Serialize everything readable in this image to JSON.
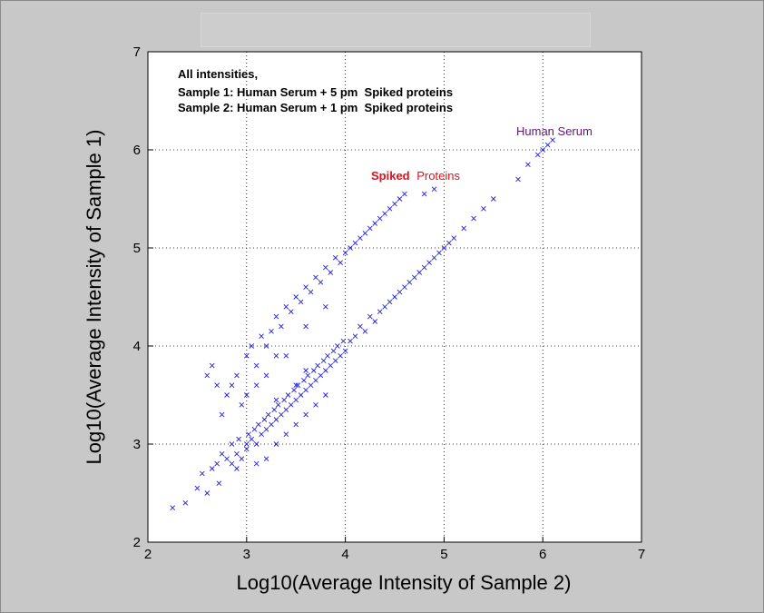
{
  "chart_data": {
    "type": "scatter",
    "xlabel": "Log10(Average Intensity of Sample 2)",
    "ylabel": "Log10(Average Intensity of Sample 1)",
    "xlim": [
      2,
      7
    ],
    "ylim": [
      2,
      7
    ],
    "xticks": [
      "2",
      "3",
      "4",
      "5",
      "6",
      "7"
    ],
    "yticks": [
      "2",
      "3",
      "4",
      "5",
      "6",
      "7"
    ],
    "grid": true,
    "marker": "x",
    "marker_color": "#2020e0",
    "annotation_lines": [
      "All intensities,",
      "Sample 1: Human Serum + 5 pm  Spiked proteins",
      "Sample 2: Human Serum + 1 pm  Spiked proteins"
    ],
    "labels": {
      "human_serum": "Human Serum",
      "spiked_bold": "Spiked",
      "spiked_rest": "Proteins"
    },
    "colors": {
      "human_serum": "#5a1a6e",
      "spiked": "#e0101a"
    },
    "series": [
      {
        "group": "serum-cloud",
        "points": [
          [
            2.25,
            2.35
          ],
          [
            2.38,
            2.4
          ],
          [
            2.5,
            2.55
          ],
          [
            2.55,
            2.7
          ],
          [
            2.6,
            2.5
          ],
          [
            2.65,
            2.75
          ],
          [
            2.7,
            2.8
          ],
          [
            2.72,
            2.6
          ],
          [
            2.75,
            2.9
          ],
          [
            2.8,
            2.85
          ],
          [
            2.85,
            2.8
          ],
          [
            2.85,
            3.0
          ],
          [
            2.9,
            2.9
          ],
          [
            2.92,
            3.05
          ],
          [
            2.95,
            2.85
          ],
          [
            3.0,
            3.0
          ],
          [
            3.0,
            2.95
          ],
          [
            3.02,
            3.1
          ],
          [
            3.05,
            3.05
          ],
          [
            3.08,
            3.15
          ],
          [
            3.1,
            3.0
          ],
          [
            3.12,
            3.2
          ],
          [
            3.15,
            3.1
          ],
          [
            3.18,
            3.25
          ],
          [
            3.2,
            3.15
          ],
          [
            3.22,
            3.3
          ],
          [
            3.25,
            3.2
          ],
          [
            3.28,
            3.35
          ],
          [
            3.3,
            3.25
          ],
          [
            3.32,
            3.4
          ],
          [
            3.35,
            3.3
          ],
          [
            3.38,
            3.45
          ],
          [
            3.4,
            3.35
          ],
          [
            3.42,
            3.5
          ],
          [
            3.45,
            3.4
          ],
          [
            3.48,
            3.55
          ],
          [
            3.5,
            3.45
          ],
          [
            3.52,
            3.6
          ],
          [
            3.55,
            3.5
          ],
          [
            3.58,
            3.65
          ],
          [
            3.6,
            3.55
          ],
          [
            3.62,
            3.7
          ],
          [
            3.65,
            3.6
          ],
          [
            3.68,
            3.75
          ],
          [
            3.7,
            3.65
          ],
          [
            3.72,
            3.8
          ],
          [
            3.75,
            3.7
          ],
          [
            3.78,
            3.85
          ],
          [
            3.8,
            3.75
          ],
          [
            3.82,
            3.9
          ],
          [
            3.85,
            3.8
          ],
          [
            3.88,
            3.95
          ],
          [
            3.9,
            3.85
          ],
          [
            3.92,
            4.0
          ],
          [
            3.95,
            3.9
          ],
          [
            3.98,
            4.05
          ],
          [
            4.0,
            3.95
          ],
          [
            4.05,
            4.05
          ],
          [
            4.1,
            4.1
          ],
          [
            4.15,
            4.2
          ],
          [
            4.2,
            4.15
          ],
          [
            4.25,
            4.3
          ],
          [
            4.3,
            4.25
          ],
          [
            4.35,
            4.35
          ],
          [
            4.4,
            4.4
          ],
          [
            4.45,
            4.45
          ],
          [
            4.5,
            4.5
          ],
          [
            4.55,
            4.55
          ],
          [
            4.6,
            4.6
          ],
          [
            4.65,
            4.65
          ],
          [
            4.7,
            4.7
          ],
          [
            4.75,
            4.75
          ],
          [
            4.8,
            4.8
          ],
          [
            4.85,
            4.85
          ],
          [
            4.9,
            4.9
          ],
          [
            4.95,
            4.95
          ],
          [
            5.0,
            5.0
          ],
          [
            5.05,
            5.05
          ],
          [
            5.1,
            5.1
          ],
          [
            5.2,
            5.2
          ],
          [
            5.3,
            5.3
          ],
          [
            5.4,
            5.4
          ],
          [
            5.5,
            5.5
          ],
          [
            5.75,
            5.7
          ],
          [
            5.85,
            5.85
          ],
          [
            5.95,
            5.95
          ],
          [
            6.0,
            6.0
          ],
          [
            6.05,
            6.05
          ],
          [
            6.1,
            6.1
          ],
          [
            3.3,
            3.0
          ],
          [
            3.4,
            3.1
          ],
          [
            3.5,
            3.2
          ],
          [
            3.6,
            3.3
          ],
          [
            3.7,
            3.4
          ],
          [
            3.8,
            3.5
          ],
          [
            3.2,
            2.85
          ],
          [
            3.1,
            2.8
          ],
          [
            2.9,
            2.75
          ],
          [
            3.5,
            3.6
          ],
          [
            3.6,
            3.75
          ],
          [
            3.3,
            3.45
          ]
        ]
      },
      {
        "group": "spiked-band",
        "points": [
          [
            2.6,
            3.7
          ],
          [
            2.65,
            3.8
          ],
          [
            2.7,
            3.6
          ],
          [
            2.8,
            3.5
          ],
          [
            2.9,
            3.7
          ],
          [
            3.0,
            3.9
          ],
          [
            3.05,
            4.0
          ],
          [
            3.1,
            3.8
          ],
          [
            3.15,
            4.1
          ],
          [
            3.2,
            4.0
          ],
          [
            3.25,
            4.15
          ],
          [
            3.3,
            4.3
          ],
          [
            3.35,
            4.2
          ],
          [
            3.4,
            4.4
          ],
          [
            3.45,
            4.35
          ],
          [
            3.5,
            4.5
          ],
          [
            3.55,
            4.45
          ],
          [
            3.6,
            4.6
          ],
          [
            3.65,
            4.55
          ],
          [
            3.7,
            4.7
          ],
          [
            3.75,
            4.65
          ],
          [
            3.8,
            4.8
          ],
          [
            3.85,
            4.75
          ],
          [
            3.9,
            4.9
          ],
          [
            3.95,
            4.85
          ],
          [
            4.0,
            4.95
          ],
          [
            4.05,
            5.0
          ],
          [
            4.1,
            5.05
          ],
          [
            4.15,
            5.1
          ],
          [
            4.2,
            5.15
          ],
          [
            4.25,
            5.2
          ],
          [
            4.3,
            5.25
          ],
          [
            4.35,
            5.3
          ],
          [
            4.4,
            5.35
          ],
          [
            4.45,
            5.4
          ],
          [
            4.5,
            5.45
          ],
          [
            4.55,
            5.5
          ],
          [
            4.6,
            5.55
          ],
          [
            4.8,
            5.55
          ],
          [
            4.9,
            5.6
          ],
          [
            3.0,
            3.5
          ],
          [
            3.1,
            3.6
          ],
          [
            3.2,
            3.7
          ],
          [
            3.3,
            3.9
          ],
          [
            3.4,
            3.9
          ],
          [
            3.6,
            4.2
          ],
          [
            3.8,
            4.4
          ],
          [
            2.95,
            3.4
          ],
          [
            2.75,
            3.3
          ],
          [
            2.85,
            3.6
          ]
        ]
      }
    ]
  }
}
